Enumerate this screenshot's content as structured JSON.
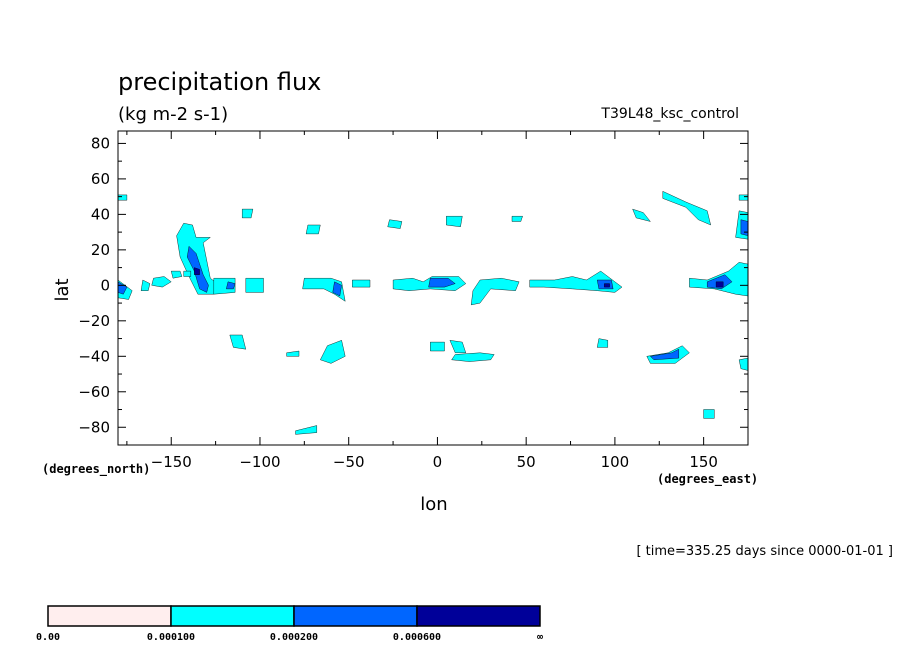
{
  "chart_data": {
    "type": "heatmap",
    "title": "precipitation flux",
    "units": "(kg m-2 s-1)",
    "dataset": "T39L48_ksc_control",
    "xlabel": "lon",
    "ylabel": "lat",
    "x_units": "(degrees_east)",
    "y_units": "(degrees_north)",
    "xlim": [
      -180,
      175
    ],
    "ylim": [
      -90,
      87
    ],
    "x_ticks": [
      -150,
      -100,
      -50,
      0,
      50,
      100,
      150
    ],
    "y_ticks": [
      -80,
      -60,
      -40,
      -20,
      0,
      20,
      40,
      60,
      80
    ],
    "time_label": "[ time=335.25 days since 0000-01-01 ]",
    "levels": [
      "0.00",
      "0.000100",
      "0.000200",
      "0.000600",
      "∞"
    ],
    "level_colors": [
      "#ffeeee",
      "#00ffff",
      "#0066ff",
      "#000099"
    ],
    "grid": false,
    "legend": "bottom-left",
    "features": [
      {
        "level": 1,
        "pts": [
          [
            -180,
            3
          ],
          [
            -172,
            -3
          ],
          [
            -174,
            -8
          ],
          [
            -180,
            -7
          ]
        ]
      },
      {
        "level": 1,
        "pts": [
          [
            -166,
            3
          ],
          [
            -162,
            1
          ],
          [
            -163,
            -3
          ],
          [
            -167,
            -3
          ]
        ]
      },
      {
        "level": 1,
        "pts": [
          [
            -160,
            4
          ],
          [
            -154,
            5
          ],
          [
            -150,
            2
          ],
          [
            -155,
            -1
          ],
          [
            -161,
            0
          ]
        ]
      },
      {
        "level": 1,
        "pts": [
          [
            -150,
            8
          ],
          [
            -145,
            8
          ],
          [
            -144,
            5
          ],
          [
            -149,
            4
          ]
        ]
      },
      {
        "level": 1,
        "pts": [
          [
            -143,
            35
          ],
          [
            -138,
            34
          ],
          [
            -136,
            27
          ],
          [
            -128,
            27
          ],
          [
            -132,
            24
          ],
          [
            -128,
            4
          ],
          [
            -124,
            1
          ],
          [
            -126,
            -5
          ],
          [
            -135,
            -5
          ],
          [
            -140,
            5
          ],
          [
            -145,
            16
          ],
          [
            -147,
            28
          ]
        ]
      },
      {
        "level": 1,
        "pts": [
          [
            -126,
            4
          ],
          [
            -114,
            4
          ],
          [
            -114,
            -4
          ],
          [
            -126,
            -5
          ]
        ]
      },
      {
        "level": 1,
        "pts": [
          [
            -108,
            4
          ],
          [
            -98,
            4
          ],
          [
            -98,
            -4
          ],
          [
            -108,
            -4
          ]
        ]
      },
      {
        "level": 1,
        "pts": [
          [
            -75,
            4
          ],
          [
            -60,
            4
          ],
          [
            -54,
            2
          ],
          [
            -52,
            -9
          ],
          [
            -58,
            -5
          ],
          [
            -64,
            -2
          ],
          [
            -76,
            -2
          ]
        ]
      },
      {
        "level": 1,
        "pts": [
          [
            -48,
            3
          ],
          [
            -38,
            3
          ],
          [
            -38,
            -1
          ],
          [
            -48,
            -1
          ]
        ]
      },
      {
        "level": 1,
        "pts": [
          [
            -25,
            3
          ],
          [
            -14,
            4
          ],
          [
            -8,
            2
          ],
          [
            -3,
            5
          ],
          [
            12,
            5
          ],
          [
            16,
            1
          ],
          [
            10,
            -3
          ],
          [
            -4,
            -2
          ],
          [
            -16,
            -3
          ],
          [
            -25,
            -2
          ]
        ]
      },
      {
        "level": 1,
        "pts": [
          [
            24,
            3
          ],
          [
            36,
            4
          ],
          [
            46,
            2
          ],
          [
            44,
            -3
          ],
          [
            30,
            -2
          ],
          [
            24,
            -10
          ],
          [
            19,
            -11
          ],
          [
            20,
            -3
          ]
        ]
      },
      {
        "level": 1,
        "pts": [
          [
            52,
            3
          ],
          [
            66,
            3
          ],
          [
            76,
            5
          ],
          [
            84,
            3
          ],
          [
            92,
            8
          ],
          [
            100,
            2
          ],
          [
            104,
            -1
          ],
          [
            100,
            -4
          ],
          [
            90,
            -3
          ],
          [
            76,
            -2
          ],
          [
            60,
            -1
          ],
          [
            52,
            -1
          ]
        ]
      },
      {
        "level": 1,
        "pts": [
          [
            142,
            4
          ],
          [
            152,
            3
          ],
          [
            164,
            8
          ],
          [
            170,
            13
          ],
          [
            175,
            12
          ],
          [
            175,
            -6
          ],
          [
            168,
            -5
          ],
          [
            156,
            -2
          ],
          [
            142,
            -1
          ]
        ]
      },
      {
        "level": 1,
        "pts": [
          [
            -117,
            -28
          ],
          [
            -110,
            -28
          ],
          [
            -108,
            -36
          ],
          [
            -115,
            -35
          ]
        ]
      },
      {
        "level": 1,
        "pts": [
          [
            -62,
            -34
          ],
          [
            -54,
            -31
          ],
          [
            -52,
            -40
          ],
          [
            -60,
            -44
          ],
          [
            -66,
            -42
          ]
        ]
      },
      {
        "level": 1,
        "pts": [
          [
            -4,
            -32
          ],
          [
            4,
            -32
          ],
          [
            4,
            -37
          ],
          [
            -4,
            -37
          ]
        ]
      },
      {
        "level": 1,
        "pts": [
          [
            7,
            -31
          ],
          [
            14,
            -32
          ],
          [
            16,
            -38
          ],
          [
            10,
            -38
          ]
        ]
      },
      {
        "level": 1,
        "pts": [
          [
            10,
            -39
          ],
          [
            24,
            -38
          ],
          [
            32,
            -39
          ],
          [
            30,
            -42
          ],
          [
            18,
            -43
          ],
          [
            8,
            -42
          ]
        ]
      },
      {
        "level": 1,
        "pts": [
          [
            118,
            -40
          ],
          [
            130,
            -38
          ],
          [
            138,
            -34
          ],
          [
            142,
            -38
          ],
          [
            134,
            -44
          ],
          [
            120,
            -44
          ]
        ]
      },
      {
        "level": 1,
        "pts": [
          [
            127,
            53
          ],
          [
            140,
            47
          ],
          [
            152,
            42
          ],
          [
            154,
            34
          ],
          [
            147,
            37
          ],
          [
            140,
            44
          ],
          [
            127,
            49
          ]
        ]
      },
      {
        "level": 1,
        "pts": [
          [
            170,
            42
          ],
          [
            175,
            41
          ],
          [
            175,
            26
          ],
          [
            168,
            27
          ]
        ]
      },
      {
        "level": 1,
        "pts": [
          [
            -73,
            34
          ],
          [
            -66,
            34
          ],
          [
            -67,
            29
          ],
          [
            -74,
            29
          ]
        ]
      },
      {
        "level": 1,
        "pts": [
          [
            -27,
            37
          ],
          [
            -20,
            36
          ],
          [
            -21,
            32
          ],
          [
            -28,
            33
          ]
        ]
      },
      {
        "level": 1,
        "pts": [
          [
            5,
            39
          ],
          [
            14,
            39
          ],
          [
            13,
            33
          ],
          [
            5,
            34
          ]
        ]
      },
      {
        "level": 1,
        "pts": [
          [
            -110,
            43
          ],
          [
            -104,
            43
          ],
          [
            -105,
            38
          ],
          [
            -110,
            38
          ]
        ]
      },
      {
        "level": 1,
        "pts": [
          [
            150,
            -70
          ],
          [
            156,
            -70
          ],
          [
            156,
            -75
          ],
          [
            150,
            -75
          ]
        ]
      },
      {
        "level": 1,
        "pts": [
          [
            -80,
            -82
          ],
          [
            -68,
            -79
          ],
          [
            -68,
            -83
          ],
          [
            -80,
            -84
          ]
        ]
      },
      {
        "level": 1,
        "pts": [
          [
            -180,
            51
          ],
          [
            -175,
            51
          ],
          [
            -175,
            48
          ],
          [
            -180,
            48
          ]
        ]
      },
      {
        "level": 1,
        "pts": [
          [
            170,
            51
          ],
          [
            175,
            51
          ],
          [
            175,
            48
          ],
          [
            170,
            48
          ]
        ]
      },
      {
        "level": 1,
        "pts": [
          [
            -143,
            8
          ],
          [
            -139,
            8
          ],
          [
            -139,
            5
          ],
          [
            -143,
            5
          ]
        ]
      },
      {
        "level": 1,
        "pts": [
          [
            42,
            39
          ],
          [
            48,
            39
          ],
          [
            47,
            36
          ],
          [
            42,
            36
          ]
        ]
      },
      {
        "level": 1,
        "pts": [
          [
            110,
            43
          ],
          [
            116,
            41
          ],
          [
            120,
            36
          ],
          [
            112,
            38
          ]
        ]
      },
      {
        "level": 1,
        "pts": [
          [
            -85,
            -38
          ],
          [
            -78,
            -37
          ],
          [
            -78,
            -40
          ],
          [
            -85,
            -40
          ]
        ]
      },
      {
        "level": 1,
        "pts": [
          [
            170,
            -42
          ],
          [
            175,
            -41
          ],
          [
            175,
            -48
          ],
          [
            171,
            -47
          ]
        ]
      },
      {
        "level": 1,
        "pts": [
          [
            91,
            -30
          ],
          [
            96,
            -31
          ],
          [
            96,
            -35
          ],
          [
            90,
            -35
          ]
        ]
      },
      {
        "level": 2,
        "pts": [
          [
            -180,
            2
          ],
          [
            -175,
            -1
          ],
          [
            -177,
            -5
          ],
          [
            -180,
            -4
          ]
        ]
      },
      {
        "level": 2,
        "pts": [
          [
            -140,
            22
          ],
          [
            -136,
            18
          ],
          [
            -132,
            6
          ],
          [
            -129,
            0
          ],
          [
            -130,
            -4
          ],
          [
            -134,
            -2
          ],
          [
            -137,
            8
          ],
          [
            -141,
            16
          ]
        ]
      },
      {
        "level": 2,
        "pts": [
          [
            -118,
            2
          ],
          [
            -114,
            1
          ],
          [
            -115,
            -2
          ],
          [
            -119,
            -2
          ]
        ]
      },
      {
        "level": 2,
        "pts": [
          [
            -58,
            2
          ],
          [
            -54,
            0
          ],
          [
            -55,
            -6
          ],
          [
            -59,
            -4
          ]
        ]
      },
      {
        "level": 2,
        "pts": [
          [
            -4,
            4
          ],
          [
            6,
            4
          ],
          [
            10,
            1
          ],
          [
            4,
            -1
          ],
          [
            -5,
            -1
          ]
        ]
      },
      {
        "level": 2,
        "pts": [
          [
            90,
            3
          ],
          [
            98,
            3
          ],
          [
            99,
            -2
          ],
          [
            91,
            -2
          ]
        ]
      },
      {
        "level": 2,
        "pts": [
          [
            152,
            2
          ],
          [
            162,
            6
          ],
          [
            166,
            2
          ],
          [
            160,
            -2
          ],
          [
            152,
            -1
          ]
        ]
      },
      {
        "level": 2,
        "pts": [
          [
            171,
            37
          ],
          [
            175,
            36
          ],
          [
            175,
            28
          ],
          [
            171,
            29
          ]
        ]
      },
      {
        "level": 2,
        "pts": [
          [
            120,
            -40
          ],
          [
            132,
            -38
          ],
          [
            136,
            -36
          ],
          [
            136,
            -41
          ],
          [
            122,
            -42
          ]
        ]
      },
      {
        "level": 3,
        "pts": [
          [
            -137,
            10
          ],
          [
            -134,
            9
          ],
          [
            -134,
            6
          ],
          [
            -137,
            6
          ]
        ]
      },
      {
        "level": 3,
        "pts": [
          [
            94,
            1
          ],
          [
            97,
            1
          ],
          [
            97,
            -1
          ],
          [
            94,
            -1
          ]
        ]
      },
      {
        "level": 3,
        "pts": [
          [
            157,
            2
          ],
          [
            161,
            2
          ],
          [
            161,
            -1
          ],
          [
            157,
            -1
          ]
        ]
      }
    ]
  }
}
